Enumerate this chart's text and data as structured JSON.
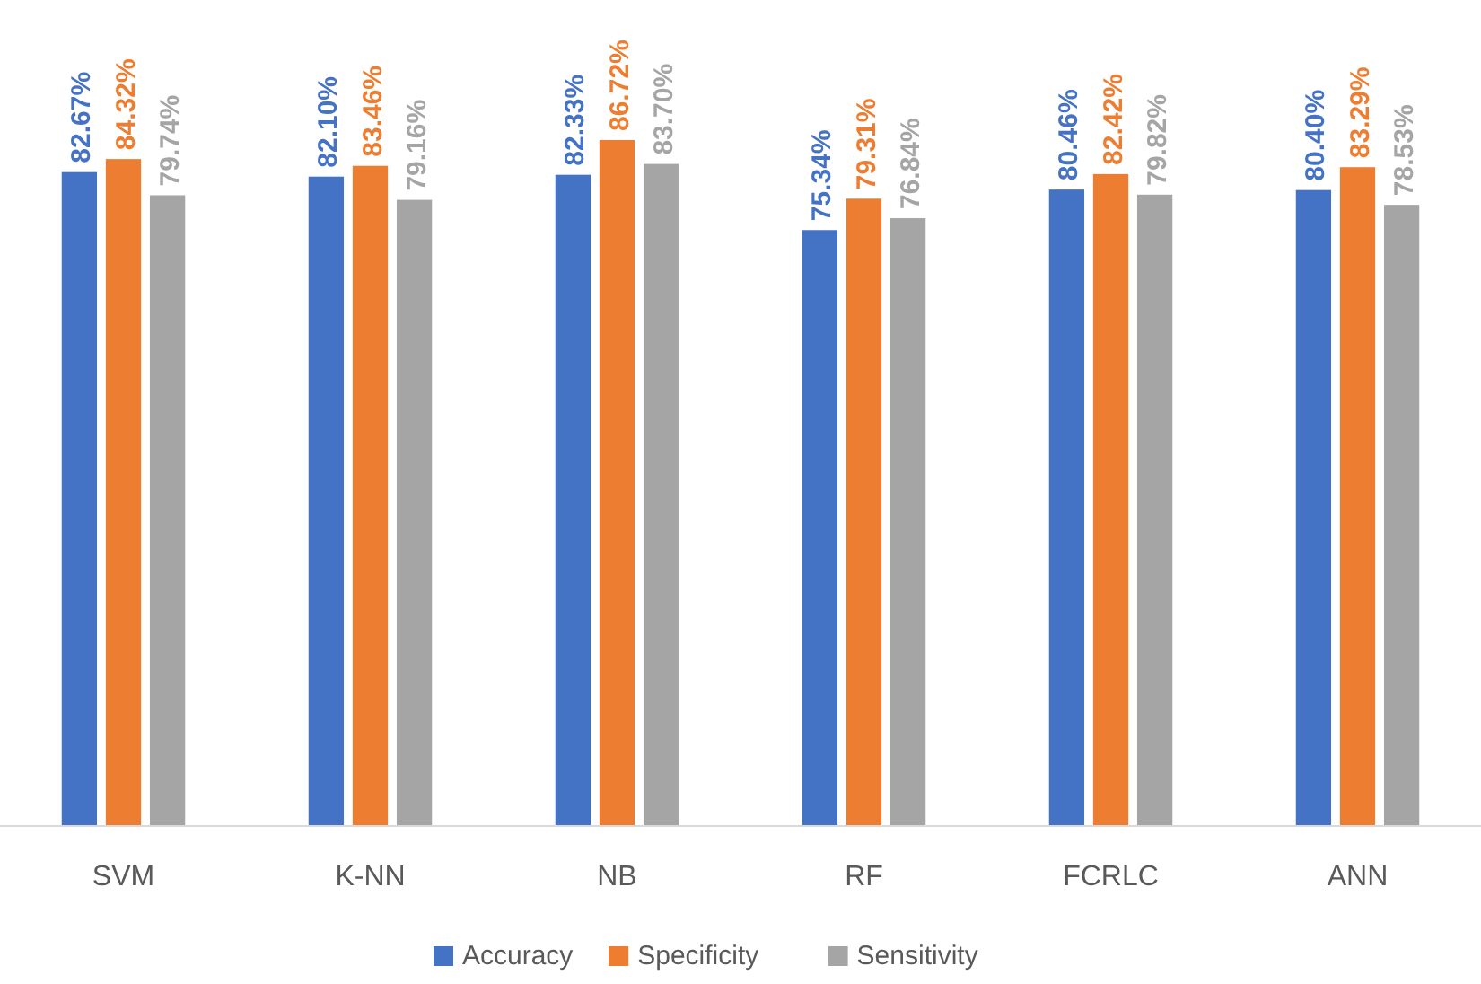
{
  "chart_data": {
    "type": "bar",
    "categories": [
      "SVM",
      "K-NN",
      "NB",
      "RF",
      "FCRLC",
      "ANN"
    ],
    "series": [
      {
        "name": "Accuracy",
        "color": "#4472c4",
        "values": [
          82.67,
          82.1,
          82.33,
          75.34,
          80.46,
          80.4
        ],
        "value_labels": [
          "82.67%",
          "82.10%",
          "82.33%",
          "75.34%",
          "80.46%",
          "80.40%"
        ]
      },
      {
        "name": "Specificity",
        "color": "#ed7d31",
        "values": [
          84.32,
          83.46,
          86.72,
          79.31,
          82.42,
          83.29
        ],
        "value_labels": [
          "84.32%",
          "83.46%",
          "86.72%",
          "79.31%",
          "82.42%",
          "83.29%"
        ]
      },
      {
        "name": "Sensitivity",
        "color": "#a5a5a5",
        "values": [
          79.74,
          79.16,
          83.7,
          76.84,
          79.82,
          78.53
        ],
        "value_labels": [
          "79.74%",
          "79.16%",
          "83.70%",
          "76.84%",
          "79.82%",
          "78.53%"
        ]
      }
    ],
    "legend": "bottom"
  }
}
